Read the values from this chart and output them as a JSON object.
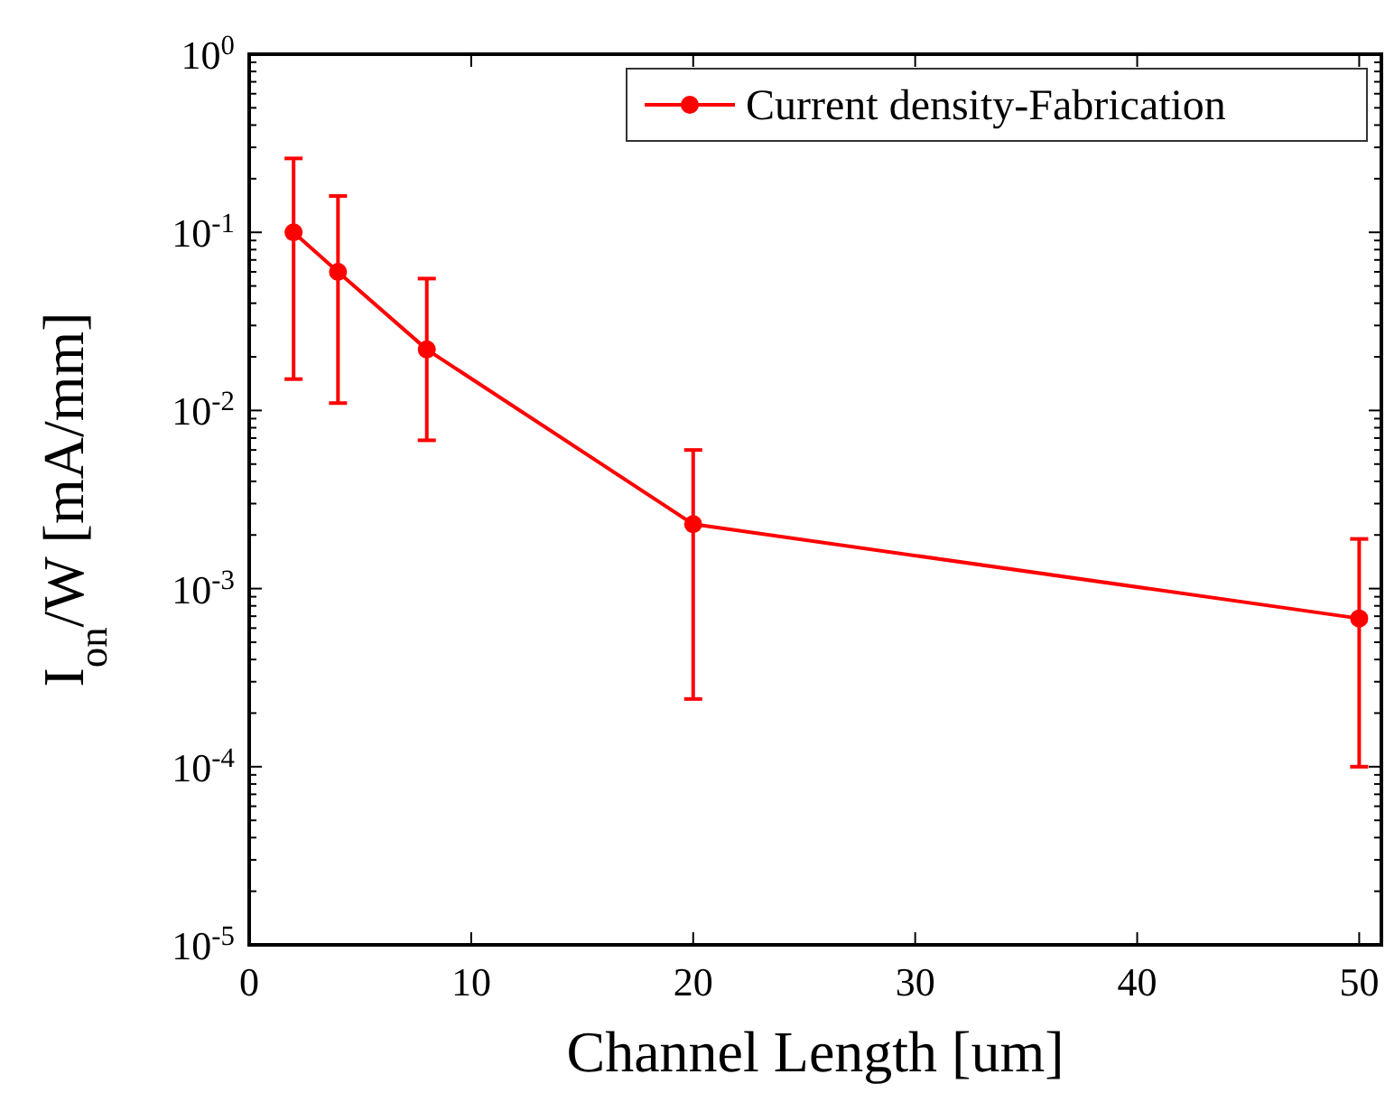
{
  "chart_data": {
    "type": "line",
    "xlabel": "Channel Length [um]",
    "ylabel": "I$_{on}$/W [mA/mm]",
    "x": [
      2,
      4,
      8,
      20,
      50
    ],
    "series": [
      {
        "name": "Current density-Fabrication",
        "color": "#ff0000",
        "values": [
          0.1,
          0.06,
          0.022,
          0.0023,
          0.00068
        ],
        "errors": [
          [
            0.015,
            0.26
          ],
          [
            0.011,
            0.16
          ],
          [
            0.0068,
            0.055
          ],
          [
            0.00024,
            0.006
          ],
          [
            0.0001,
            0.0019
          ]
        ]
      }
    ],
    "log": "y",
    "xlim": [
      0,
      51
    ],
    "ylim": [
      1e-05,
      1
    ],
    "xticks": [
      0,
      10,
      20,
      30,
      40,
      50
    ],
    "yticks": [
      {
        "value": 1e-05,
        "label": "10$^{-5}$"
      },
      {
        "value": 0.0001,
        "label": "10$^{-4}$"
      },
      {
        "value": 0.001,
        "label": "10$^{-3}$"
      },
      {
        "value": 0.01,
        "label": "10$^{-2}$"
      },
      {
        "value": 0.1,
        "label": "10$^{-1}$"
      },
      {
        "value": 1,
        "label": "10$^{0}$"
      }
    ],
    "legend": "top right",
    "marker": "circle",
    "line_style": "solid",
    "grid": false
  }
}
